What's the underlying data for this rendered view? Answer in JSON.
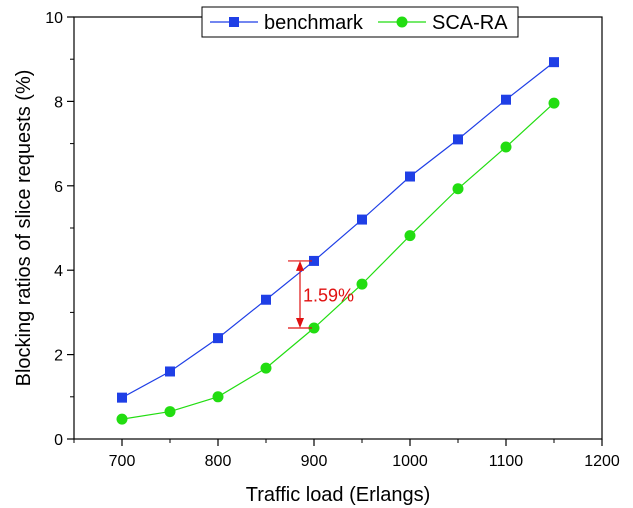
{
  "chart_data": {
    "type": "line",
    "x": [
      700,
      750,
      800,
      850,
      900,
      950,
      1000,
      1050,
      1100,
      1150
    ],
    "series": [
      {
        "name": "benchmark",
        "color": "#1f3fe6",
        "marker": "square",
        "values": [
          0.98,
          1.6,
          2.39,
          3.3,
          4.22,
          5.2,
          6.22,
          7.1,
          8.04,
          8.93
        ]
      },
      {
        "name": "SCA-RA",
        "color": "#22dd11",
        "marker": "circle",
        "values": [
          0.47,
          0.65,
          1.0,
          1.68,
          2.63,
          3.67,
          4.82,
          5.93,
          6.92,
          7.96
        ]
      }
    ],
    "xlabel": "Traffic load (Erlangs)",
    "ylabel": "Blocking ratios of slice requests (%)",
    "xlim": [
      650,
      1200
    ],
    "ylim": [
      0,
      10
    ],
    "xticks": [
      700,
      800,
      900,
      1000,
      1100,
      1200
    ],
    "yticks": [
      0,
      2,
      4,
      6,
      8,
      10
    ],
    "grid": false,
    "legend_position": "top",
    "annotation": {
      "text": "1.59%",
      "color": "#e01010",
      "x": 900,
      "y_top": 4.22,
      "y_bottom": 2.63
    }
  }
}
